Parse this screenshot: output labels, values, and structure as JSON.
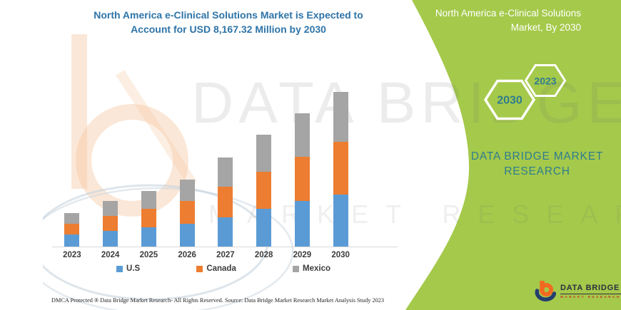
{
  "header": {
    "title_line1": "North America e-Clinical Solutions Market is Expected to",
    "title_line2": "Account for USD 8,167.32 Million by 2030",
    "title_color": "#2E74A8"
  },
  "side_panel": {
    "bg_color": "#A5C94B",
    "heading_line1": "North America e-Clinical Solutions",
    "heading_line2": "Market, By 2030",
    "hexagons": [
      {
        "label": "2030"
      },
      {
        "label": "2023"
      }
    ],
    "brand_line1": "DATA BRIDGE MARKET",
    "brand_line2": "RESEARCH",
    "brand_color": "#2F7D8E",
    "logo": {
      "wordmark": "DATA BRIDGE",
      "tagline": "MARKET RESEARCH",
      "icon_orange": "#F26A21",
      "icon_navy": "#253E6E"
    }
  },
  "watermark": {
    "big_text": "DATA BRIDGE",
    "spaced_text": "MARKET RESEARCH"
  },
  "chart_data": {
    "type": "bar",
    "stacked": true,
    "title": "North America e-Clinical Solutions Market is Expected to Account for USD 8,167.32 Million by 2030",
    "categories": [
      "2023",
      "2024",
      "2025",
      "2026",
      "2027",
      "2028",
      "2029",
      "2030"
    ],
    "series": [
      {
        "name": "U.S",
        "color": "#5B9BD5",
        "values": [
          630,
          820,
          1010,
          1195,
          1550,
          1990,
          2390,
          2740
        ]
      },
      {
        "name": "Canada",
        "color": "#ED7D31",
        "values": [
          580,
          815,
          980,
          1195,
          1595,
          1950,
          2340,
          2775
        ]
      },
      {
        "name": "Mexico",
        "color": "#A5A5A5",
        "values": [
          555,
          755,
          945,
          1135,
          1565,
          1950,
          2320,
          2652.32
        ]
      }
    ],
    "values_unit": "USD Million",
    "values_estimated": true,
    "labeled_total_2030": 8167.32,
    "xlabel": "",
    "ylabel": "",
    "ylim": [
      0,
      8500
    ],
    "grid": false,
    "legend_position": "bottom",
    "axis_line_color": "#D9D9D9"
  },
  "footer": {
    "dmca": "DMCA Protected ® Data Bridge Market Research-  All Rights Reserved.",
    "source": "Source: Data Bridge Market Research  Market Analysis Study 2023"
  }
}
